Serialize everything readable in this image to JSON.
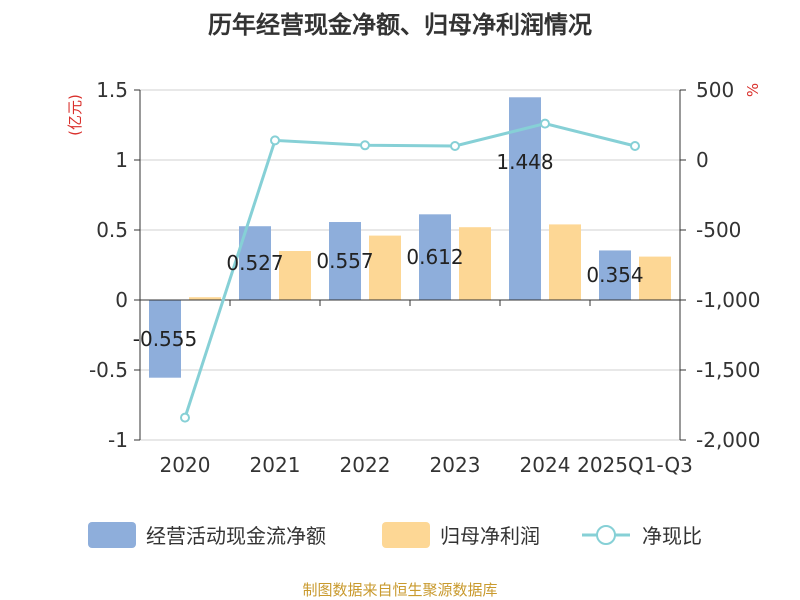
{
  "chart_data": {
    "type": "bar",
    "title": "历年经营现金净额、归母净利润情况",
    "categories": [
      "2020",
      "2021",
      "2022",
      "2023",
      "2024",
      "2025Q1-Q3"
    ],
    "y_left": {
      "label": "(亿元)",
      "range": [
        -1,
        1.5
      ],
      "ticks": [
        -1,
        -0.5,
        0,
        0.5,
        1,
        1.5
      ],
      "tick_labels": [
        "-1",
        "-0.5",
        "0",
        "0.5",
        "1",
        "1.5"
      ]
    },
    "y_right": {
      "label": "%",
      "range": [
        -2000,
        500
      ],
      "ticks": [
        -2000,
        -1500,
        -1000,
        -500,
        0,
        500
      ],
      "tick_labels": [
        "-2,000",
        "-1,500",
        "-1,000",
        "-500",
        "0",
        "500"
      ]
    },
    "series": [
      {
        "name": "经营活动现金流净额",
        "type": "bar",
        "axis": "left",
        "color": "#8eaedb",
        "values": [
          -0.555,
          0.527,
          0.557,
          0.612,
          1.448,
          0.354
        ],
        "data_labels": [
          "-0.555",
          "0.527",
          "0.557",
          "0.612",
          "1.448",
          "0.354"
        ]
      },
      {
        "name": "归母净利润",
        "type": "bar",
        "axis": "left",
        "color": "#fdd795",
        "values": [
          0.02,
          0.35,
          0.46,
          0.52,
          0.54,
          0.31
        ]
      },
      {
        "name": "净现比",
        "type": "line",
        "axis": "right",
        "color": "#86d0d6",
        "values": [
          -1840,
          140,
          105,
          100,
          260,
          100
        ]
      }
    ],
    "grid": true,
    "legend_position": "bottom",
    "source": "制图数据来自恒生聚源数据库",
    "source_color": "#c99a2e",
    "label_color": "#d9302c"
  }
}
